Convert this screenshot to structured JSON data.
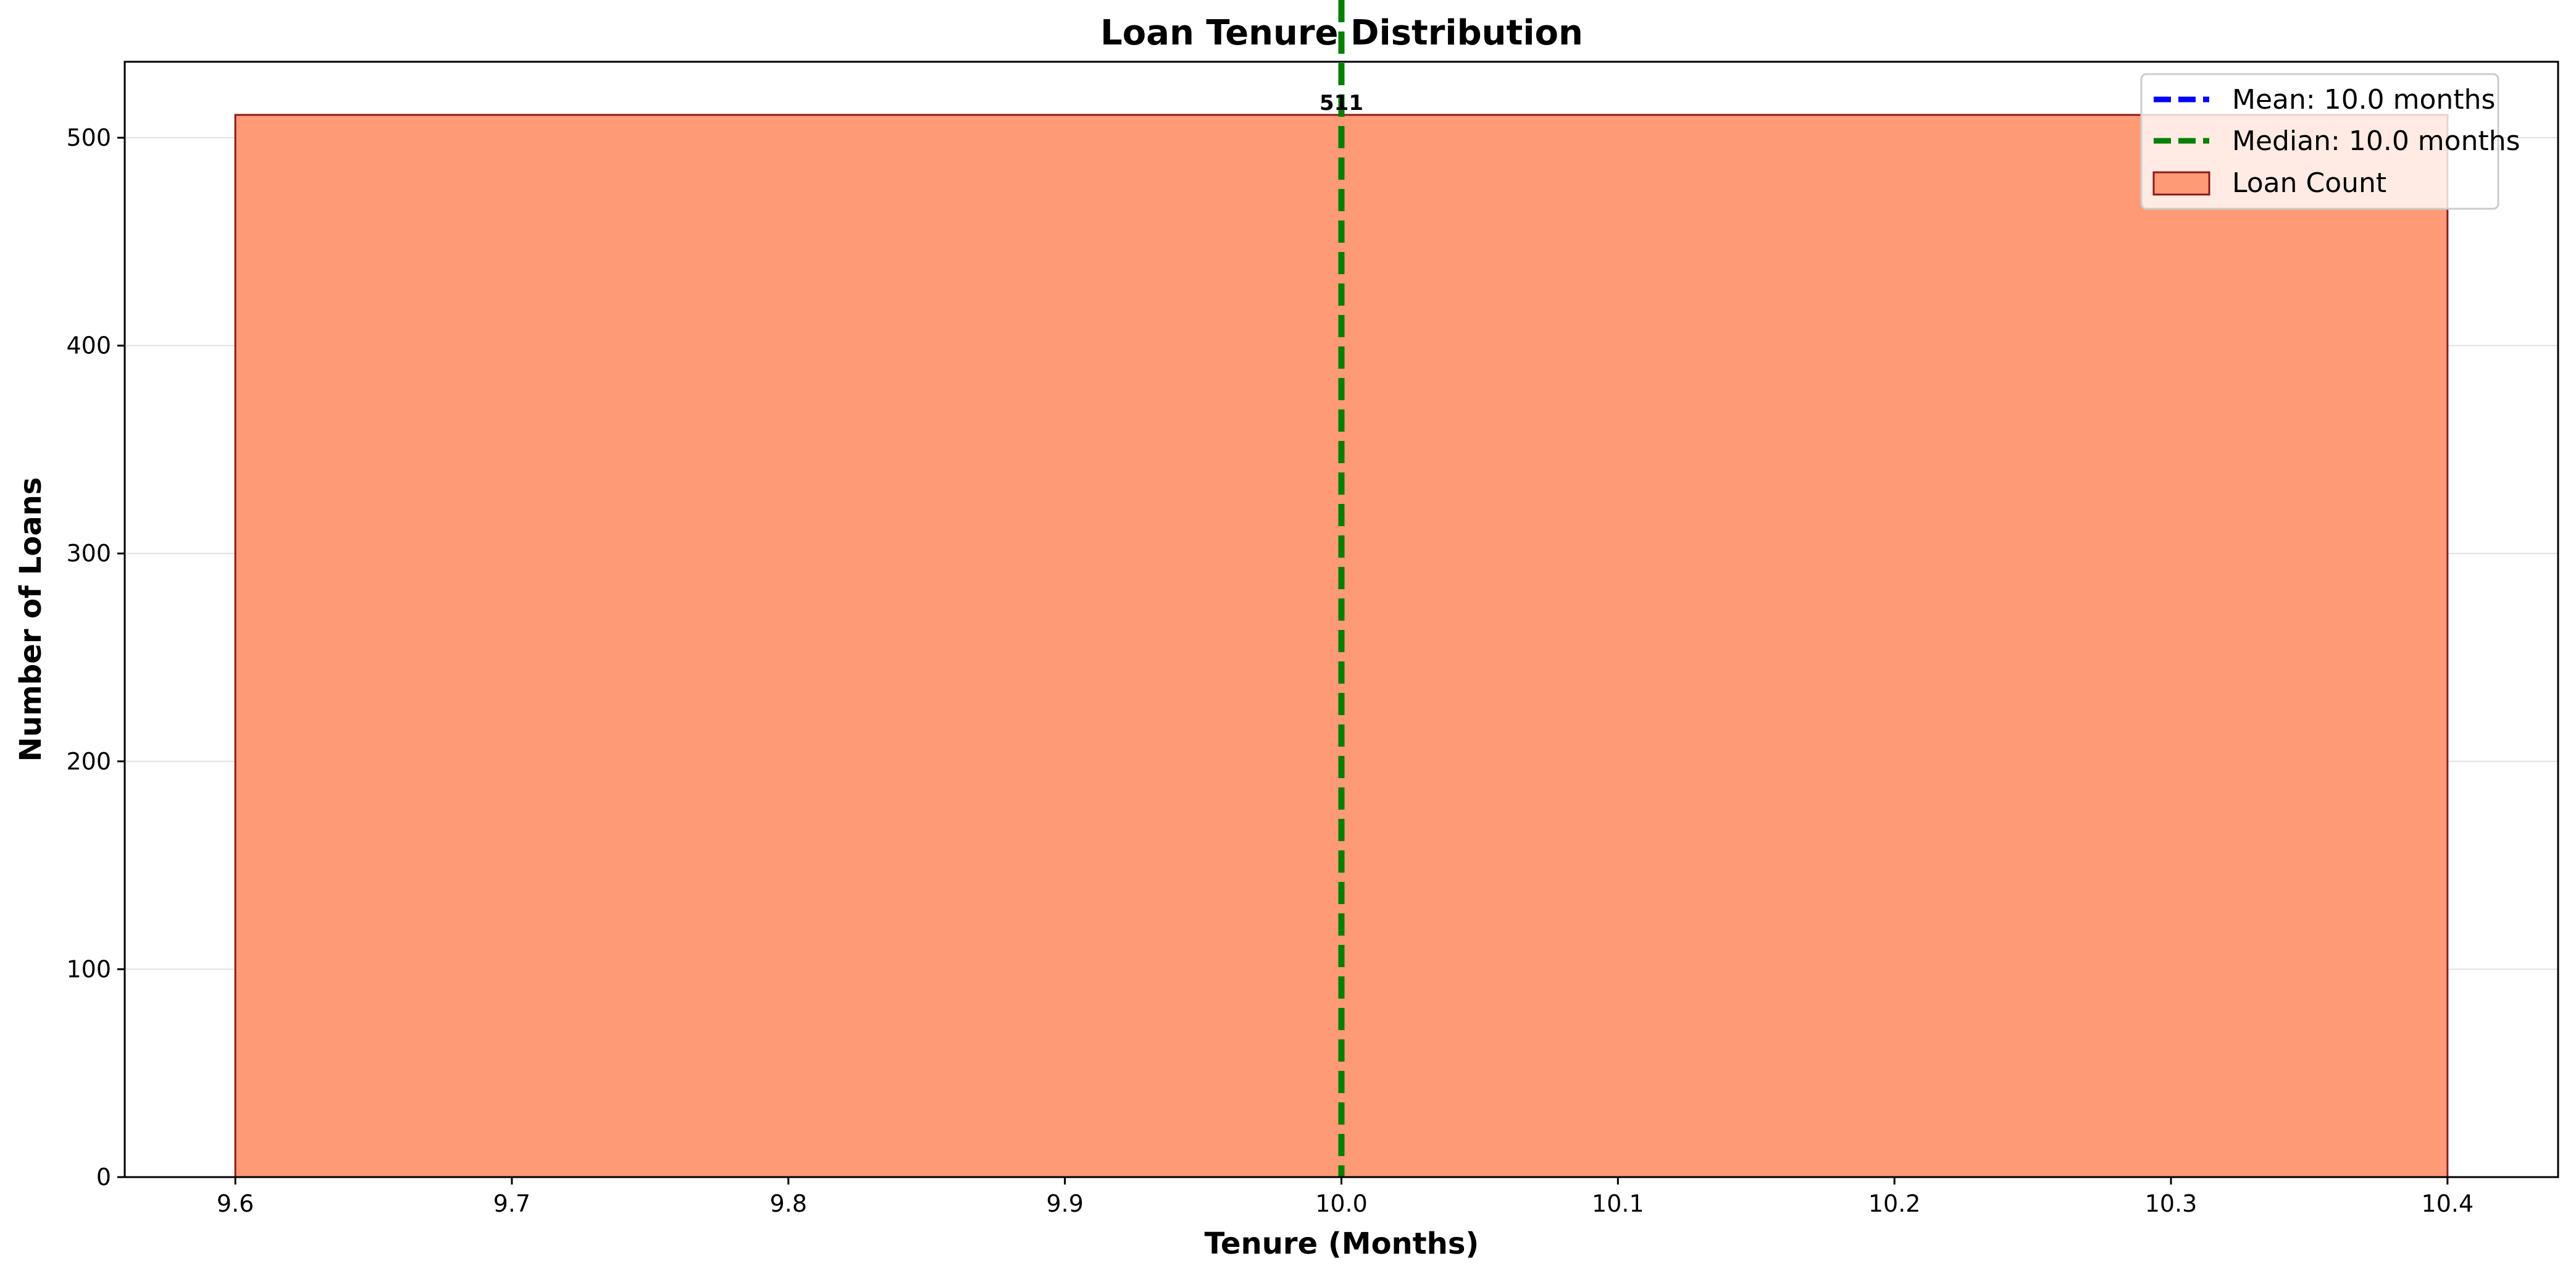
{
  "chart_data": {
    "type": "bar",
    "title": "Loan Tenure Distribution",
    "xlabel": "Tenure (Months)",
    "ylabel": "Number of Loans",
    "xlim": [
      9.56,
      10.44
    ],
    "ylim": [
      0,
      536.55
    ],
    "xticks": [
      9.6,
      9.7,
      9.8,
      9.9,
      10.0,
      10.1,
      10.2,
      10.3,
      10.4
    ],
    "xtick_labels": [
      "9.6",
      "9.7",
      "9.8",
      "9.9",
      "10.0",
      "10.1",
      "10.2",
      "10.3",
      "10.4"
    ],
    "yticks": [
      0,
      100,
      200,
      300,
      400,
      500
    ],
    "ytick_labels": [
      "0",
      "100",
      "200",
      "300",
      "400",
      "500"
    ],
    "grid": "y",
    "bars": [
      {
        "x0": 9.6,
        "x1": 10.4,
        "value": 511,
        "label": "511"
      }
    ],
    "bar_fill": "#FF9A76",
    "bar_edge": "#8B1A1A",
    "lines": [
      {
        "name": "Mean: 10.0 months",
        "x": 10.0,
        "color": "#0000FF"
      },
      {
        "name": "Median: 10.0 months",
        "x": 10.0,
        "color": "#007F00"
      }
    ],
    "legend": {
      "placement": "top-right",
      "entries": [
        "Mean: 10.0 months",
        "Median: 10.0 months",
        "Loan Count"
      ]
    }
  }
}
